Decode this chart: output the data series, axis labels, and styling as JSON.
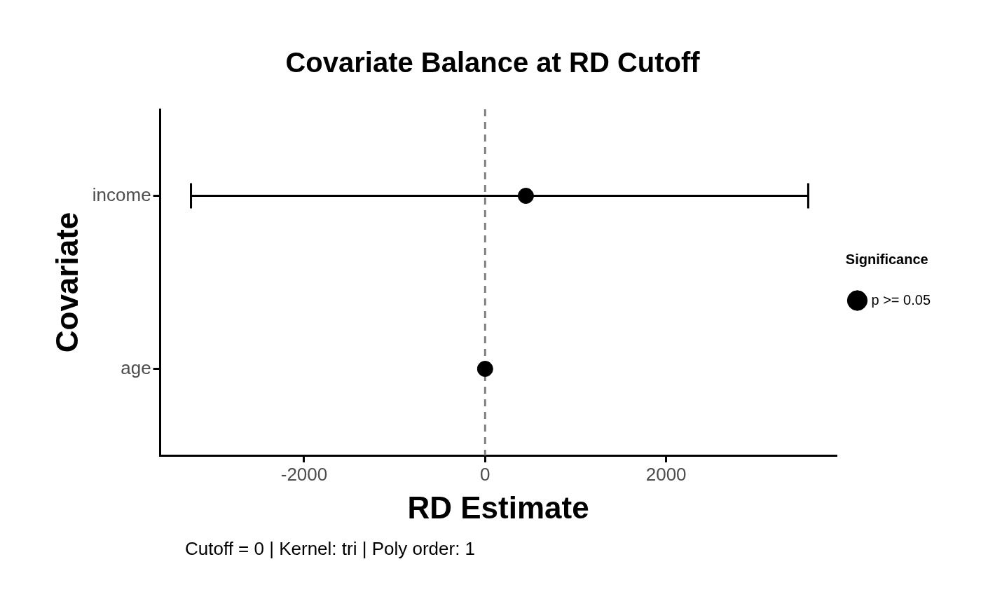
{
  "chart_data": {
    "type": "scatter",
    "title": "Covariate Balance at RD Cutoff",
    "xlabel": "RD Estimate",
    "ylabel": "Covariate",
    "orientation": "horizontal",
    "categories": [
      "income",
      "age"
    ],
    "series": [
      {
        "name": "p >= 0.05",
        "color": "#000000",
        "values": [
          450,
          0
        ],
        "errors": [
          [
            -3250,
            3570
          ],
          null
        ]
      }
    ],
    "xlim": [
      -3590,
      3880
    ],
    "xticks": [
      -2000,
      0,
      2000
    ],
    "ref_lines": [
      {
        "axis": "x",
        "value": 0,
        "color": "#808080",
        "line_style": "dashed"
      }
    ],
    "legend_title": "Significance",
    "legend": "right",
    "grid": false,
    "marker": "circle",
    "annotations": [
      "Cutoff = 0 | Kernel: tri | Poly order: 1"
    ]
  }
}
